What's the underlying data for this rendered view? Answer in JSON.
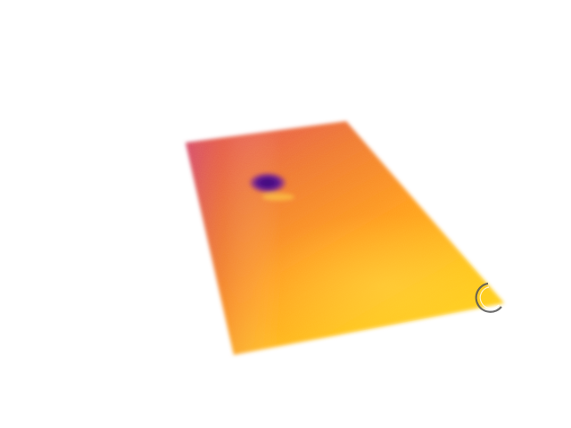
{
  "scene": {
    "subject": "thermal-panel",
    "palette": {
      "background": "#ffffff",
      "hot": "#ffd21a",
      "warm": "#ff9a20",
      "mid": "#f07a30",
      "cool": "#e9614a",
      "cold_spot": "#4b0b8a",
      "cold_spot_edge": "#9a2f8a",
      "indicator": "#6b6b6b"
    },
    "icons": {
      "cold_spot": "cold-spot-marker",
      "indicator": "partial-circle-marker"
    }
  }
}
